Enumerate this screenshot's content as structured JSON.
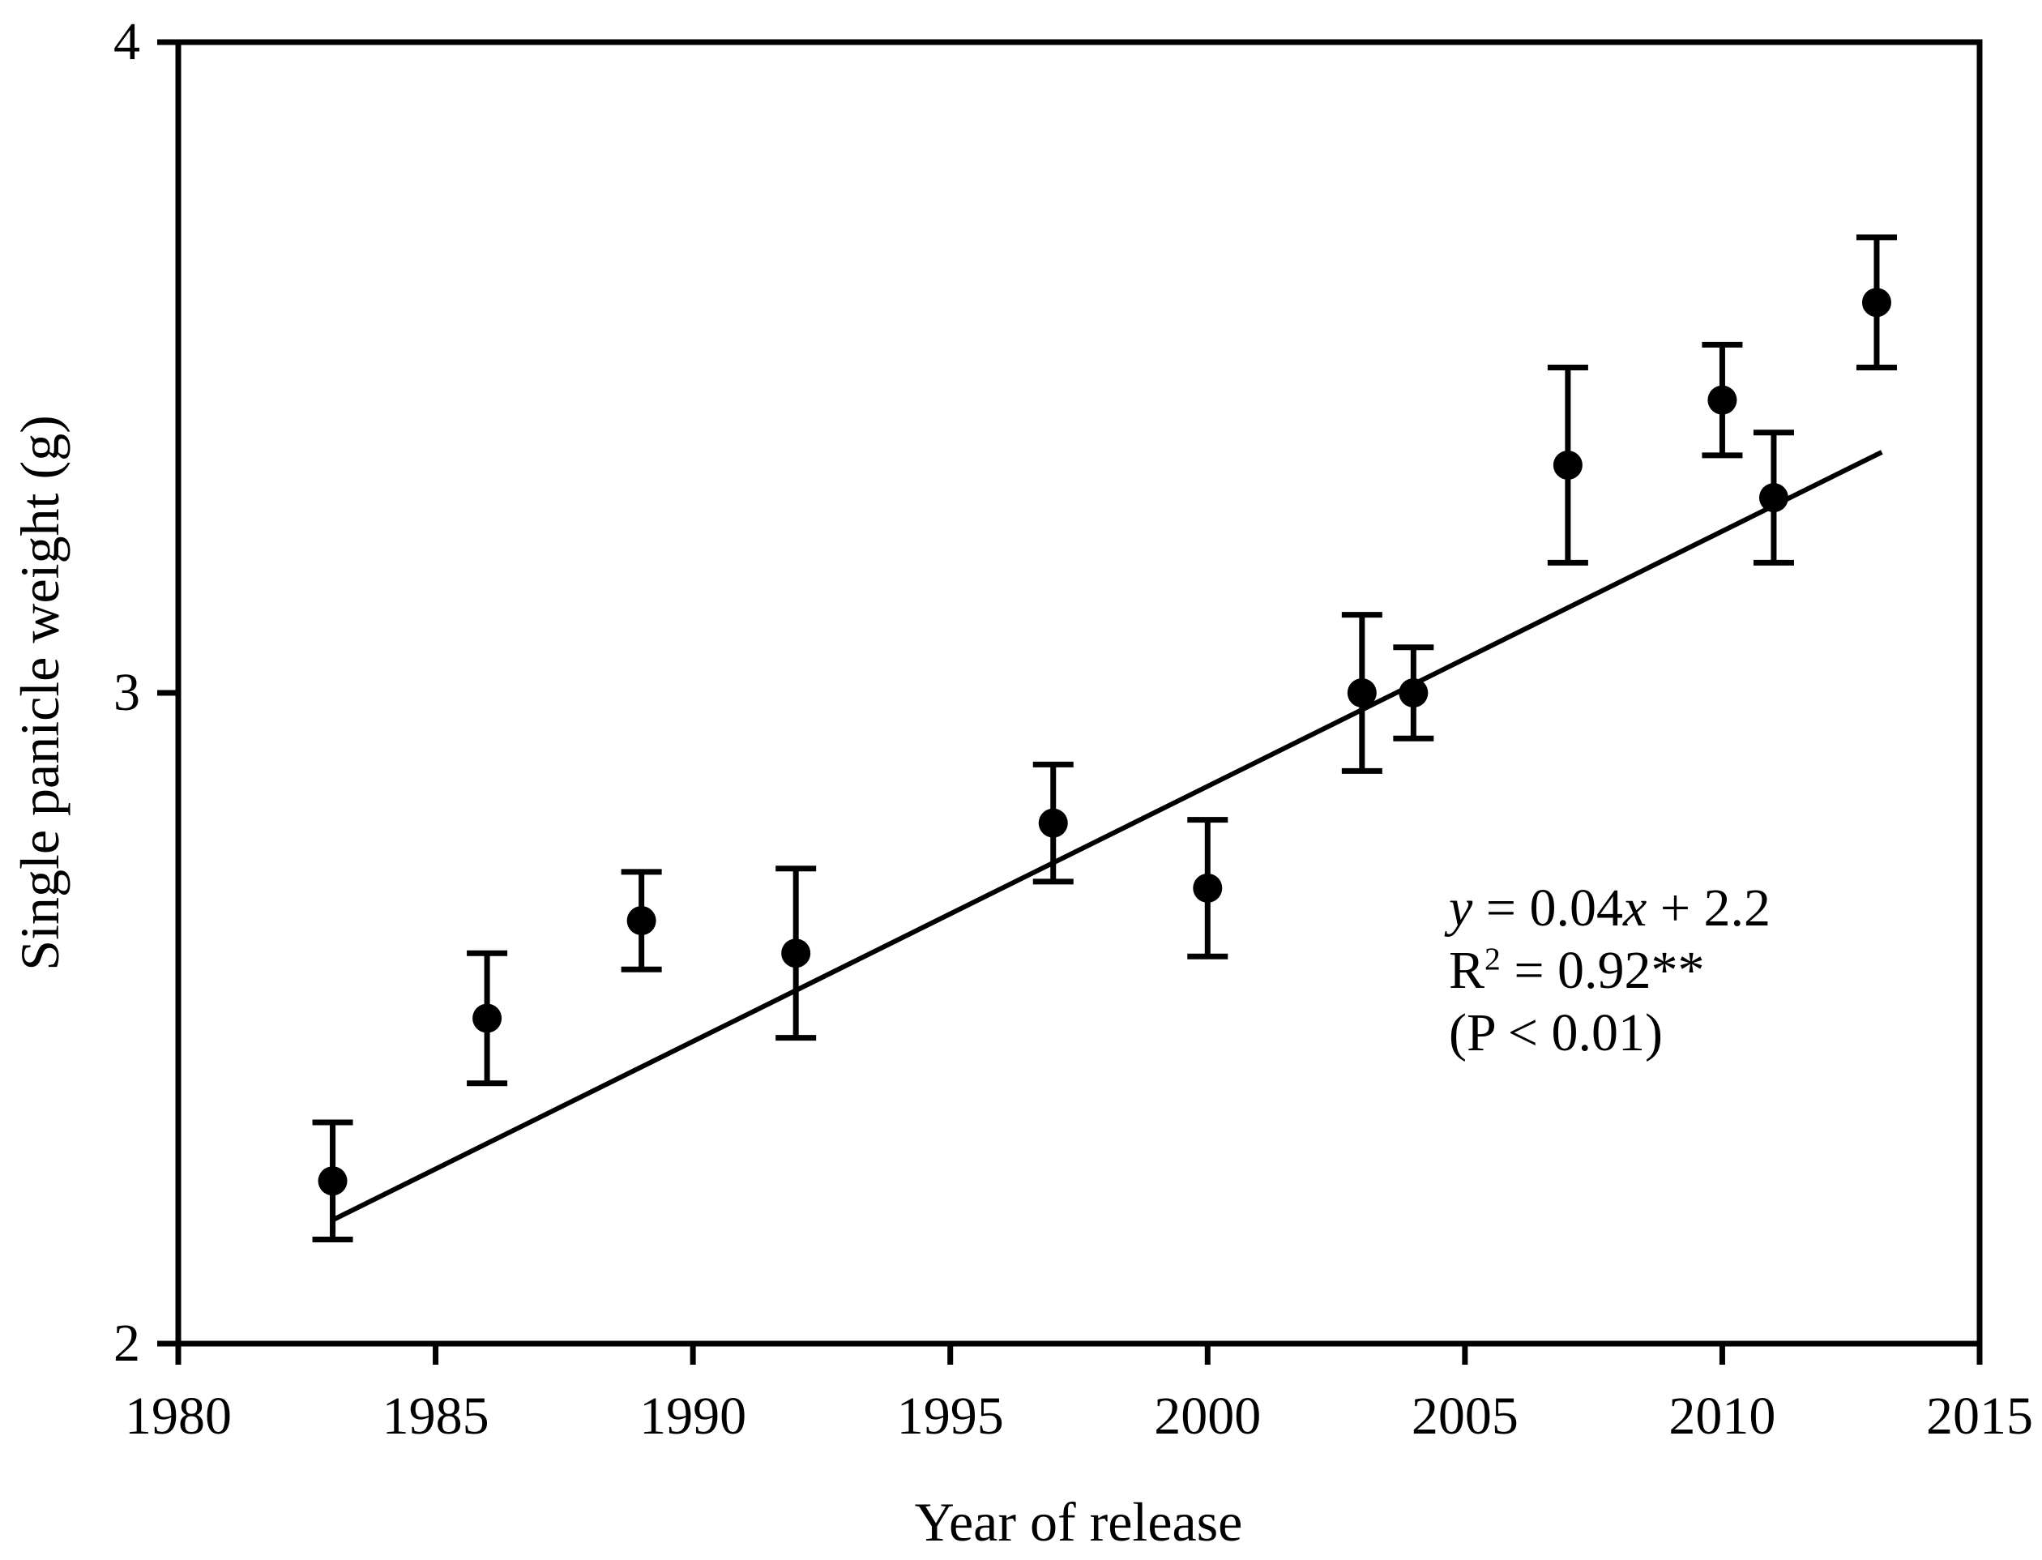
{
  "chart_data": {
    "type": "scatter",
    "title": "",
    "xlabel": "Year of release",
    "ylabel": "Single panicle weight (g)",
    "xlim": [
      1980,
      2015
    ],
    "ylim": [
      2,
      4
    ],
    "x_ticks": [
      1980,
      1985,
      1990,
      1995,
      2000,
      2005,
      2010,
      2015
    ],
    "y_ticks": [
      2,
      3,
      4
    ],
    "grid": false,
    "legend": "none",
    "marker_color": "#000000",
    "background_color": "#ffffff",
    "points": [
      {
        "x": 1983,
        "y": 2.25,
        "err": 0.09
      },
      {
        "x": 1986,
        "y": 2.5,
        "err": 0.1
      },
      {
        "x": 1989,
        "y": 2.65,
        "err": 0.075
      },
      {
        "x": 1992,
        "y": 2.6,
        "err": 0.13
      },
      {
        "x": 1997,
        "y": 2.8,
        "err": 0.09
      },
      {
        "x": 2000,
        "y": 2.7,
        "err": 0.105
      },
      {
        "x": 2003,
        "y": 3.0,
        "err": 0.12
      },
      {
        "x": 2004,
        "y": 3.0,
        "err": 0.07
      },
      {
        "x": 2007,
        "y": 3.35,
        "err": 0.15
      },
      {
        "x": 2010,
        "y": 3.45,
        "err": 0.085
      },
      {
        "x": 2011,
        "y": 3.3,
        "err": 0.1
      },
      {
        "x": 2013,
        "y": 3.6,
        "err": 0.1
      }
    ],
    "trendline": {
      "x1": 1983,
      "y1": 2.19,
      "x2": 2013.1,
      "y2": 3.37
    },
    "annotation": {
      "eq_y": "y",
      "eq_mid": " = 0.04",
      "eq_x": "x",
      "eq_tail": " + 2.2",
      "r_base": "R",
      "r_sup": "2",
      "r_rest": " = 0.92**",
      "p_line": "(P < 0.01)"
    }
  }
}
